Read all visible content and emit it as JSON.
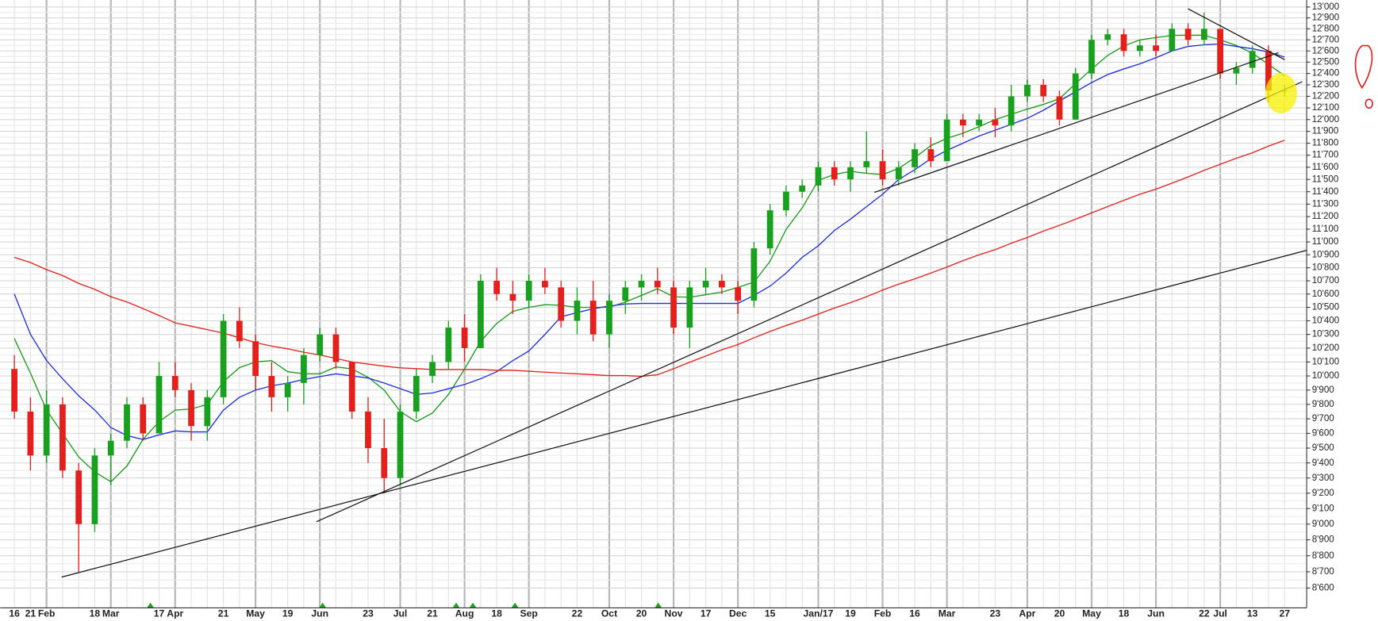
{
  "chart_data": {
    "type": "candlestick",
    "log_scale": true,
    "grid": true,
    "up_color": "#19a01e",
    "down_color": "#e3201b",
    "ylim": [
      8480,
      13065
    ],
    "yticks": [
      {
        "value": 8600,
        "label": "8'600"
      },
      {
        "value": 8700,
        "label": "8'700"
      },
      {
        "value": 8800,
        "label": "8'800"
      },
      {
        "value": 8900,
        "label": "8'900"
      },
      {
        "value": 9000,
        "label": "9'000"
      },
      {
        "value": 9100,
        "label": "9'100"
      },
      {
        "value": 9200,
        "label": "9'200"
      },
      {
        "value": 9300,
        "label": "9'300"
      },
      {
        "value": 9400,
        "label": "9'400"
      },
      {
        "value": 9500,
        "label": "9'500"
      },
      {
        "value": 9600,
        "label": "9'600"
      },
      {
        "value": 9700,
        "label": "9'700"
      },
      {
        "value": 9800,
        "label": "9'800"
      },
      {
        "value": 9900,
        "label": "9'900"
      },
      {
        "value": 10000,
        "label": "10'000"
      },
      {
        "value": 10100,
        "label": "10'100"
      },
      {
        "value": 10200,
        "label": "10'200"
      },
      {
        "value": 10300,
        "label": "10'300"
      },
      {
        "value": 10400,
        "label": "10'400"
      },
      {
        "value": 10500,
        "label": "10'500"
      },
      {
        "value": 10600,
        "label": "10'600"
      },
      {
        "value": 10700,
        "label": "10'700"
      },
      {
        "value": 10800,
        "label": "10'800"
      },
      {
        "value": 10900,
        "label": "10'900"
      },
      {
        "value": 11000,
        "label": "11'000"
      },
      {
        "value": 11100,
        "label": "11'100"
      },
      {
        "value": 11200,
        "label": "11'200"
      },
      {
        "value": 11300,
        "label": "11'300"
      },
      {
        "value": 11400,
        "label": "11'400"
      },
      {
        "value": 11500,
        "label": "11'500"
      },
      {
        "value": 11600,
        "label": "11'600"
      },
      {
        "value": 11700,
        "label": "11'700"
      },
      {
        "value": 11800,
        "label": "11'800"
      },
      {
        "value": 11900,
        "label": "11'900"
      },
      {
        "value": 12000,
        "label": "12'000"
      },
      {
        "value": 12100,
        "label": "12'100"
      },
      {
        "value": 12200,
        "label": "12'200"
      },
      {
        "value": 12300,
        "label": "12'300"
      },
      {
        "value": 12400,
        "label": "12'400"
      },
      {
        "value": 12500,
        "label": "12'500"
      },
      {
        "value": 12600,
        "label": "12'600"
      },
      {
        "value": 12700,
        "label": "12'700"
      },
      {
        "value": 12800,
        "label": "12'800"
      },
      {
        "value": 12900,
        "label": "12'900"
      },
      {
        "value": 13000,
        "label": "13'000"
      }
    ],
    "categories": [
      "16",
      "21",
      "Feb",
      null,
      null,
      "18",
      "Mar",
      null,
      null,
      "17",
      "Apr",
      null,
      null,
      "21",
      null,
      "May",
      null,
      "19",
      null,
      "Jun",
      null,
      null,
      "23",
      null,
      "Jul",
      null,
      "21",
      null,
      "Aug",
      null,
      "18",
      null,
      "Sep",
      null,
      null,
      "22",
      null,
      "Oct",
      null,
      "20",
      null,
      "Nov",
      null,
      "17",
      null,
      "Dec",
      null,
      "15",
      null,
      null,
      "Jan/17",
      null,
      "19",
      null,
      "Feb",
      null,
      "16",
      null,
      "Mar",
      null,
      null,
      "23",
      null,
      "Apr",
      null,
      "20",
      null,
      "May",
      null,
      "18",
      null,
      "Jun",
      null,
      null,
      "22",
      "Jul",
      null,
      "13",
      null,
      "27"
    ],
    "open": [
      10050,
      9750,
      9450,
      9800,
      9350,
      9000,
      9450,
      9550,
      9800,
      9600,
      10000,
      9900,
      9650,
      9850,
      10400,
      10250,
      10000,
      9850,
      9950,
      10150,
      10300,
      10100,
      9750,
      9500,
      9300,
      9750,
      10000,
      10100,
      10350,
      10200,
      10700,
      10600,
      10550,
      10700,
      10650,
      10400,
      10550,
      10300,
      10550,
      10650,
      10700,
      10650,
      10350,
      10650,
      10700,
      10650,
      10550,
      10950,
      11250,
      11400,
      11450,
      11600,
      11500,
      11600,
      11650,
      11500,
      11600,
      11750,
      11650,
      12000,
      11950,
      12000,
      11950,
      12200,
      12300,
      12200,
      12000,
      12400,
      12700,
      12750,
      12600,
      12650,
      12600,
      12800,
      12700,
      12800,
      12400,
      12450,
      12600,
      12250
    ],
    "high": [
      10150,
      9850,
      9900,
      9850,
      9400,
      9500,
      9600,
      9850,
      9850,
      10100,
      10100,
      9950,
      9900,
      10450,
      10500,
      10300,
      10100,
      10000,
      10200,
      10350,
      10350,
      10100,
      9850,
      9700,
      9800,
      10050,
      10150,
      10400,
      10450,
      10750,
      10800,
      10700,
      10750,
      10800,
      10700,
      10650,
      10700,
      10600,
      10700,
      10750,
      10800,
      10700,
      10700,
      10800,
      10750,
      10700,
      11000,
      11300,
      11450,
      11500,
      11650,
      11650,
      11650,
      11900,
      11750,
      11650,
      11800,
      11850,
      12050,
      12050,
      12050,
      12100,
      12300,
      12350,
      12350,
      12250,
      12450,
      12750,
      12800,
      12800,
      12700,
      12750,
      12850,
      12850,
      12950,
      12800,
      12500,
      12650,
      12650,
      12300
    ],
    "low": [
      9700,
      9350,
      9400,
      9300,
      8700,
      8950,
      9250,
      9500,
      9550,
      9600,
      9850,
      9550,
      9550,
      9800,
      10200,
      9900,
      9750,
      9750,
      9800,
      10100,
      10050,
      9700,
      9400,
      9200,
      9250,
      9700,
      9950,
      10050,
      10100,
      10200,
      10550,
      10450,
      10500,
      10600,
      10350,
      10300,
      10250,
      10200,
      10450,
      10550,
      10600,
      10300,
      10200,
      10600,
      10600,
      10450,
      10500,
      10900,
      11200,
      11350,
      11400,
      11450,
      11400,
      11550,
      11450,
      11450,
      11550,
      11600,
      11650,
      11850,
      11900,
      11850,
      11900,
      12150,
      12150,
      11950,
      12000,
      12350,
      12650,
      12550,
      12550,
      12550,
      12600,
      12650,
      12650,
      12350,
      12300,
      12400,
      12150,
      12200
    ],
    "close": [
      9750,
      9450,
      9800,
      9350,
      9000,
      9450,
      9550,
      9800,
      9600,
      10000,
      9900,
      9650,
      9850,
      10400,
      10250,
      10000,
      9850,
      9950,
      10150,
      10300,
      10100,
      9750,
      9500,
      9300,
      9750,
      10000,
      10100,
      10350,
      10200,
      10700,
      10600,
      10550,
      10700,
      10650,
      10400,
      10550,
      10300,
      10550,
      10650,
      10700,
      10650,
      10350,
      10650,
      10700,
      10650,
      10550,
      10950,
      11250,
      11400,
      11450,
      11600,
      11500,
      11600,
      11650,
      11500,
      11600,
      11750,
      11650,
      12000,
      11950,
      12000,
      11950,
      12200,
      12300,
      12200,
      12000,
      12400,
      12700,
      12750,
      12600,
      12650,
      12600,
      12800,
      12700,
      12800,
      12400,
      12450,
      12600,
      12250,
      12250
    ],
    "lines": [
      {
        "color": "#1a9a1a",
        "values": [
          10270,
          10020,
          9760,
          9600,
          9440,
          9340,
          9275,
          9380,
          9560,
          9680,
          9760,
          9768,
          9800,
          9960,
          10060,
          10100,
          10110,
          10030,
          10015,
          10015,
          10065,
          10050,
          9990,
          9900,
          9750,
          9680,
          9740,
          9870,
          10050,
          10250,
          10380,
          10470,
          10500,
          10520,
          10515,
          10500,
          10500,
          10500,
          10540,
          10590,
          10640,
          10580,
          10575,
          10595,
          10615,
          10650,
          10690,
          10850,
          11100,
          11270,
          11493,
          11540,
          11566,
          11550,
          11540,
          11590,
          11680,
          11780,
          11840,
          11885,
          11940,
          12000,
          12045,
          12090,
          12130,
          12180,
          12310,
          12440,
          12560,
          12645,
          12700,
          12720,
          12740,
          12742,
          12742,
          12700,
          12650,
          12580,
          12480,
          12380
        ]
      },
      {
        "color": "#1f2fd6",
        "values": [
          10600,
          10300,
          10110,
          9980,
          9860,
          9760,
          9640,
          9585,
          9558,
          9590,
          9617,
          9610,
          9610,
          9760,
          9850,
          9900,
          9930,
          9950,
          9975,
          9995,
          10015,
          10000,
          9985,
          9950,
          9910,
          9870,
          9880,
          9910,
          9940,
          9980,
          10030,
          10110,
          10180,
          10300,
          10430,
          10460,
          10490,
          10510,
          10525,
          10530,
          10530,
          10530,
          10530,
          10530,
          10530,
          10530,
          10590,
          10660,
          10760,
          10880,
          10970,
          11090,
          11180,
          11280,
          11380,
          11500,
          11580,
          11670,
          11740,
          11800,
          11860,
          11910,
          11960,
          12010,
          12080,
          12160,
          12240,
          12320,
          12390,
          12440,
          12485,
          12540,
          12600,
          12640,
          12655,
          12663,
          12640,
          12620,
          12590,
          12545
        ]
      },
      {
        "color": "#e3201b",
        "values": [
          10880,
          10840,
          10785,
          10740,
          10680,
          10635,
          10580,
          10540,
          10490,
          10440,
          10385,
          10360,
          10335,
          10310,
          10275,
          10240,
          10215,
          10195,
          10170,
          10150,
          10125,
          10100,
          10085,
          10070,
          10058,
          10052,
          10046,
          10046,
          10046,
          10046,
          10040,
          10040,
          10034,
          10027,
          10021,
          10015,
          10009,
          10003,
          10003,
          9997,
          10009,
          10052,
          10098,
          10143,
          10188,
          10226,
          10275,
          10322,
          10365,
          10405,
          10450,
          10495,
          10535,
          10580,
          10630,
          10675,
          10715,
          10760,
          10805,
          10855,
          10900,
          10940,
          10990,
          11035,
          11085,
          11130,
          11180,
          11230,
          11280,
          11330,
          11380,
          11420,
          11470,
          11520,
          11575,
          11625,
          11675,
          11720,
          11775,
          11825
        ]
      }
    ]
  }
}
